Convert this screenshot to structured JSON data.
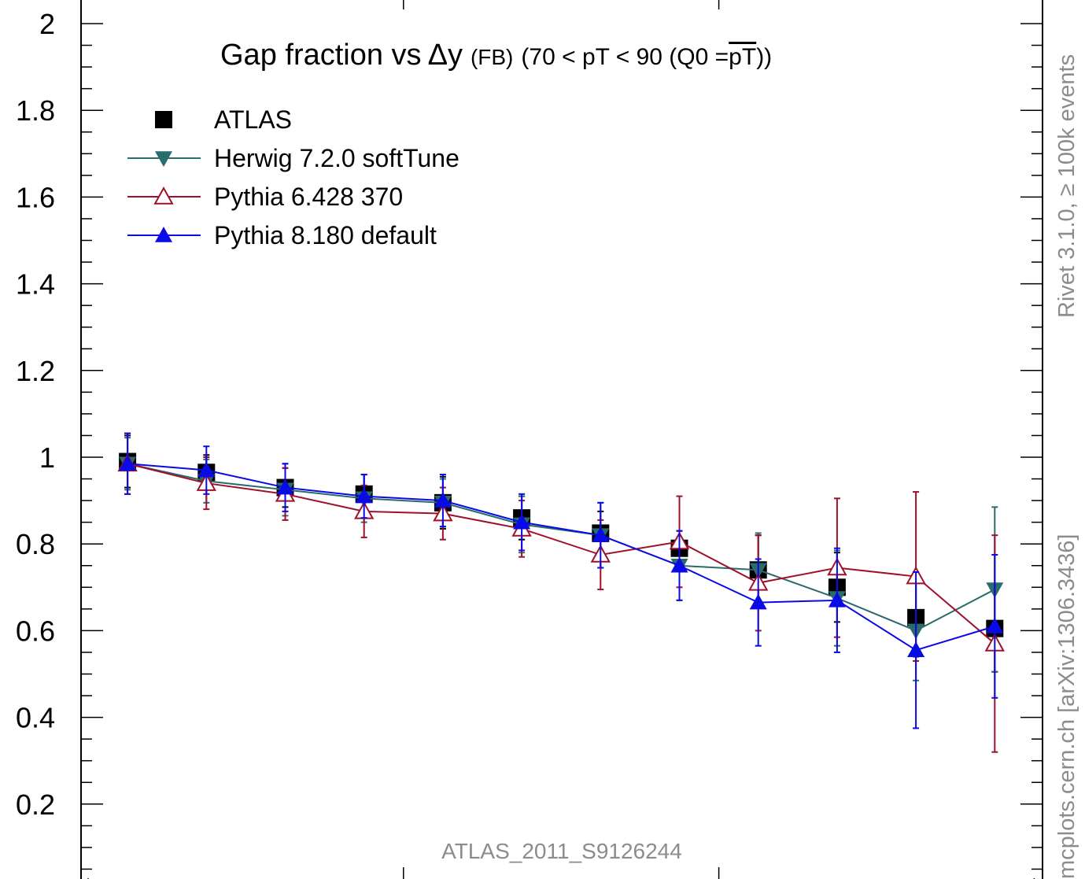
{
  "chart_data": {
    "type": "line",
    "title": {
      "main": "Gap fraction vs",
      "delta": "Δ",
      "var": "y",
      "fb": "(FB)",
      "range_pre": "(70 < pT <  90 (Q0 =",
      "overline": "pT",
      "range_post": "))"
    },
    "xlabel": "",
    "ylabel": "",
    "ylim": [
      0.0,
      2.05
    ],
    "yticks": [
      {
        "value": 0.2,
        "label": "0.2"
      },
      {
        "value": 0.4,
        "label": "0.4"
      },
      {
        "value": 0.6,
        "label": "0.6"
      },
      {
        "value": 0.8,
        "label": "0.8"
      },
      {
        "value": 1.0,
        "label": "1"
      },
      {
        "value": 1.2,
        "label": "1.2"
      },
      {
        "value": 1.4,
        "label": "1.4"
      },
      {
        "value": 1.6,
        "label": "1.6"
      },
      {
        "value": 1.8,
        "label": "1.8"
      },
      {
        "value": 2.0,
        "label": "2"
      }
    ],
    "xlim": [
      0,
      12
    ],
    "x": [
      0.5,
      1.5,
      2.5,
      3.5,
      4.5,
      5.5,
      6.5,
      7.5,
      8.5,
      9.5,
      10.5,
      11.5
    ],
    "grid": false,
    "legend_position": "top-left",
    "series": [
      {
        "name": "ATLAS",
        "marker": "square",
        "color": "#000000",
        "line": false,
        "values": [
          0.99,
          0.965,
          0.93,
          0.915,
          0.895,
          0.86,
          0.825,
          0.79,
          0.74,
          0.7,
          0.63,
          0.605
        ],
        "errors": [
          0.06,
          0.04,
          0.045,
          0.045,
          0.06,
          0.05,
          0.05,
          0.04,
          0.08,
          0.08,
          0.09,
          0.1
        ]
      },
      {
        "name": "Herwig 7.2.0 softTune",
        "marker": "triangle-down",
        "color": "#2a6b6b",
        "line": true,
        "values": [
          0.985,
          0.945,
          0.925,
          0.905,
          0.895,
          0.845,
          0.82,
          0.75,
          0.74,
          0.675,
          0.6,
          0.695
        ],
        "errors": [
          0.06,
          0.05,
          0.06,
          0.055,
          0.055,
          0.065,
          0.075,
          0.08,
          0.085,
          0.11,
          0.115,
          0.19
        ]
      },
      {
        "name": "Pythia 6.428 370",
        "marker": "triangle-up-open",
        "color": "#a0102a",
        "line": true,
        "values": [
          0.985,
          0.94,
          0.915,
          0.875,
          0.87,
          0.835,
          0.775,
          0.805,
          0.71,
          0.745,
          0.725,
          0.57
        ],
        "errors": [
          0.07,
          0.06,
          0.06,
          0.06,
          0.06,
          0.065,
          0.08,
          0.105,
          0.11,
          0.16,
          0.195,
          0.25
        ]
      },
      {
        "name": "Pythia 8.180 default",
        "marker": "triangle-up",
        "color": "#0a0ae6",
        "line": true,
        "values": [
          0.985,
          0.97,
          0.93,
          0.91,
          0.9,
          0.85,
          0.82,
          0.75,
          0.665,
          0.67,
          0.555,
          0.61
        ],
        "errors": [
          0.07,
          0.055,
          0.055,
          0.05,
          0.06,
          0.065,
          0.075,
          0.08,
          0.1,
          0.12,
          0.18,
          0.165
        ]
      }
    ],
    "annotations": {
      "watermark": "ATLAS_2011_S9126244",
      "side_top": "Rivet 3.1.0, ≥ 100k events",
      "side_bottom": "mcplots.cern.ch [arXiv:1306.3436]"
    },
    "colors": {
      "axis": "#000000",
      "annotation_gray": "#8c8c8c"
    }
  }
}
